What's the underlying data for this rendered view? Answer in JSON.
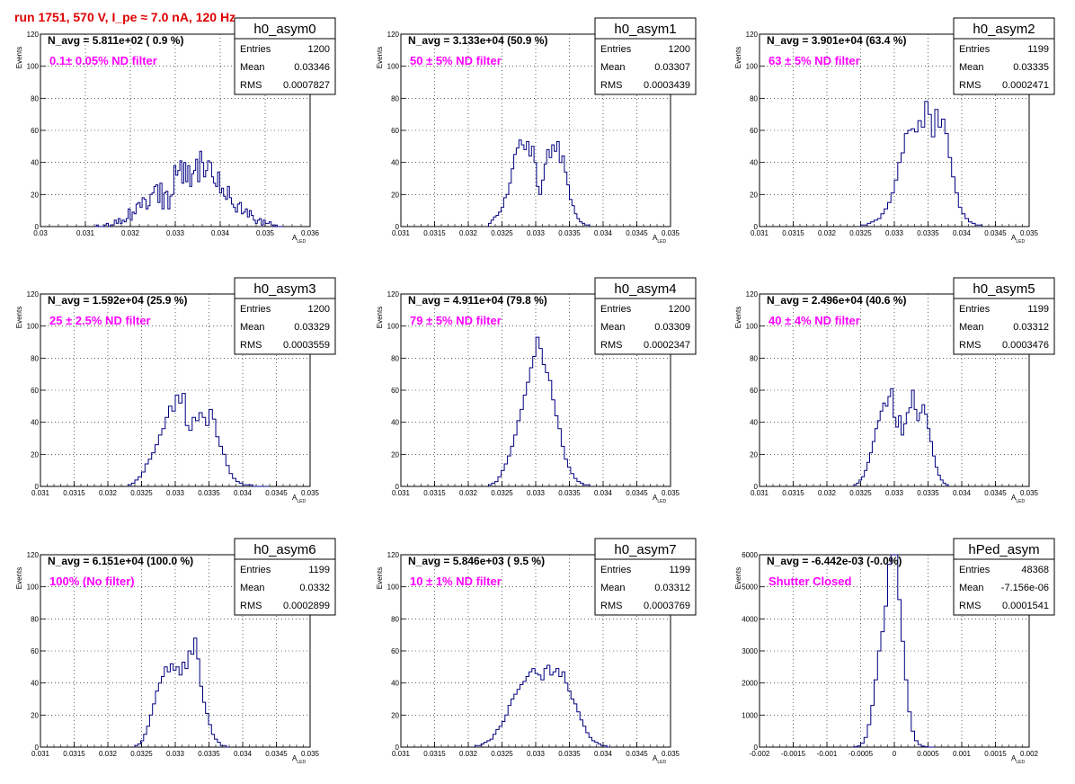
{
  "title": "run 1751,   570 V, I_pe ≈ 7.0 nA, 120 Hz",
  "colors": {
    "histogram": "#000080",
    "title": "#e00000",
    "annotation": "#ff00ff",
    "grid": "#000000"
  },
  "stats_labels": {
    "entries": "Entries",
    "mean": "Mean",
    "rms": "RMS"
  },
  "xlabel": {
    "main": "A",
    "sub": "LED"
  },
  "chart_data": [
    {
      "type": "bar",
      "name": "h0_asym0",
      "n_avg": "N_avg = 5.811e+02 ( 0.9 %)",
      "note": "0.1± 0.05% ND filter",
      "entries": "1200",
      "mean": "0.03346",
      "rms": "0.0007827",
      "ylabel": "Events",
      "xlim": [
        0.03,
        0.036
      ],
      "ylim": [
        0,
        120
      ],
      "xticks": [
        "0.03",
        "0.031",
        "0.032",
        "0.033",
        "0.034",
        "0.035",
        "0.036"
      ],
      "yticks": [
        "0",
        "20",
        "40",
        "60",
        "80",
        "100",
        "120"
      ],
      "bin_range": [
        0.0312,
        0.0354
      ],
      "values": [
        0,
        1,
        0,
        0,
        0,
        1,
        2,
        0,
        1,
        1,
        4,
        2,
        5,
        2,
        4,
        3,
        5,
        11,
        4,
        9,
        8,
        14,
        15,
        12,
        18,
        17,
        11,
        13,
        20,
        21,
        25,
        26,
        15,
        27,
        11,
        21,
        22,
        11,
        19,
        20,
        38,
        32,
        35,
        41,
        27,
        40,
        28,
        38,
        25,
        33,
        35,
        42,
        28,
        47,
        40,
        31,
        35,
        41,
        40,
        31,
        27,
        25,
        34,
        21,
        24,
        19,
        17,
        25,
        18,
        14,
        12,
        9,
        14,
        15,
        8,
        9,
        11,
        6,
        10,
        7,
        4,
        2,
        4,
        5,
        1,
        4,
        2,
        2,
        3,
        1,
        0,
        1,
        0,
        0,
        0
      ]
    },
    {
      "type": "bar",
      "name": "h0_asym1",
      "n_avg": "N_avg = 3.133e+04 (50.9 %)",
      "note": "50 ± 5% ND filter",
      "entries": "1200",
      "mean": "0.03307",
      "rms": "0.0003439",
      "ylabel": "Events",
      "xlim": [
        0.031,
        0.035
      ],
      "ylim": [
        0,
        120
      ],
      "xticks": [
        "0.031",
        "0.0315",
        "0.032",
        "0.0325",
        "0.033",
        "0.0335",
        "0.034",
        "0.0345",
        "0.035"
      ],
      "yticks": [
        "0",
        "20",
        "40",
        "60",
        "80",
        "100",
        "120"
      ],
      "bin_range": [
        0.0323,
        0.0338
      ],
      "values": [
        2,
        4,
        6,
        7,
        9,
        12,
        18,
        20,
        27,
        36,
        45,
        49,
        54,
        51,
        48,
        53,
        44,
        50,
        40,
        25,
        20,
        29,
        39,
        48,
        43,
        51,
        47,
        53,
        40,
        44,
        34,
        26,
        17,
        13,
        8,
        5,
        3,
        2,
        1,
        1
      ]
    },
    {
      "type": "bar",
      "name": "h0_asym2",
      "n_avg": "N_avg = 3.901e+04 (63.4 %)",
      "note": "63 ± 5% ND filter",
      "entries": "1199",
      "mean": "0.03335",
      "rms": "0.0002471",
      "ylabel": "Events",
      "xlim": [
        0.031,
        0.035
      ],
      "ylim": [
        0,
        120
      ],
      "xticks": [
        "0.031",
        "0.0315",
        "0.032",
        "0.0325",
        "0.033",
        "0.0335",
        "0.034",
        "0.0345",
        "0.035"
      ],
      "yticks": [
        "0",
        "20",
        "40",
        "60",
        "80",
        "100",
        "120"
      ],
      "bin_range": [
        0.0325,
        0.0343
      ],
      "values": [
        1,
        1,
        2,
        3,
        4,
        5,
        8,
        11,
        15,
        21,
        29,
        40,
        46,
        58,
        60,
        61,
        59,
        66,
        62,
        78,
        70,
        56,
        73,
        62,
        67,
        58,
        43,
        31,
        21,
        12,
        8,
        5,
        3,
        2,
        1,
        1
      ]
    },
    {
      "type": "bar",
      "name": "h0_asym3",
      "n_avg": "N_avg = 1.592e+04 (25.9 %)",
      "note": "25 ± 2.5% ND filter",
      "entries": "1200",
      "mean": "0.03329",
      "rms": "0.0003559",
      "ylabel": "Events",
      "xlim": [
        0.031,
        0.035
      ],
      "ylim": [
        0,
        120
      ],
      "xticks": [
        "0.031",
        "0.0315",
        "0.032",
        "0.0325",
        "0.033",
        "0.0335",
        "0.034",
        "0.0345",
        "0.035"
      ],
      "yticks": [
        "0",
        "20",
        "40",
        "60",
        "80",
        "100",
        "120"
      ],
      "bin_range": [
        0.0323,
        0.0344
      ],
      "values": [
        1,
        2,
        4,
        6,
        9,
        14,
        17,
        21,
        26,
        32,
        36,
        43,
        50,
        47,
        57,
        52,
        58,
        38,
        35,
        43,
        41,
        46,
        43,
        38,
        48,
        42,
        31,
        25,
        20,
        13,
        8,
        5,
        3,
        2,
        1,
        1,
        1,
        0,
        0,
        0,
        0,
        0
      ]
    },
    {
      "type": "bar",
      "name": "h0_asym4",
      "n_avg": "N_avg = 4.911e+04 (79.8 %)",
      "note": "79 ± 5% ND filter",
      "entries": "1200",
      "mean": "0.03309",
      "rms": "0.0002347",
      "ylabel": "Events",
      "xlim": [
        0.031,
        0.035
      ],
      "ylim": [
        0,
        120
      ],
      "xticks": [
        "0.031",
        "0.0315",
        "0.032",
        "0.0325",
        "0.033",
        "0.0335",
        "0.034",
        "0.0345",
        "0.035"
      ],
      "yticks": [
        "0",
        "20",
        "40",
        "60",
        "80",
        "100",
        "120"
      ],
      "bin_range": [
        0.0323,
        0.0338
      ],
      "values": [
        1,
        2,
        3,
        6,
        10,
        14,
        19,
        25,
        32,
        41,
        48,
        57,
        65,
        74,
        81,
        93,
        86,
        76,
        71,
        66,
        54,
        44,
        36,
        25,
        17,
        12,
        8,
        5,
        3,
        2,
        1,
        1
      ]
    },
    {
      "type": "bar",
      "name": "h0_asym5",
      "n_avg": "N_avg = 2.496e+04 (40.6 %)",
      "note": "40 ± 4% ND filter",
      "entries": "1199",
      "mean": "0.03312",
      "rms": "0.0003476",
      "ylabel": "Events",
      "xlim": [
        0.031,
        0.035
      ],
      "ylim": [
        0,
        120
      ],
      "xticks": [
        "0.031",
        "0.0315",
        "0.032",
        "0.0325",
        "0.033",
        "0.0335",
        "0.034",
        "0.0345",
        "0.035"
      ],
      "yticks": [
        "0",
        "20",
        "40",
        "60",
        "80",
        "100",
        "120"
      ],
      "bin_range": [
        0.0324,
        0.0338
      ],
      "values": [
        1,
        2,
        4,
        6,
        10,
        15,
        21,
        28,
        36,
        41,
        47,
        52,
        50,
        56,
        61,
        43,
        37,
        44,
        32,
        39,
        46,
        49,
        60,
        48,
        41,
        46,
        51,
        45,
        36,
        28,
        19,
        12,
        7,
        4,
        2,
        1
      ]
    },
    {
      "type": "bar",
      "name": "h0_asym6",
      "n_avg": "N_avg = 6.151e+04 (100.0 %)",
      "note": "100% (No filter)",
      "entries": "1199",
      "mean": "0.0332",
      "rms": "0.0002899",
      "ylabel": "Events",
      "xlim": [
        0.031,
        0.035
      ],
      "ylim": [
        0,
        120
      ],
      "xticks": [
        "0.031",
        "0.0315",
        "0.032",
        "0.0325",
        "0.033",
        "0.0335",
        "0.034",
        "0.0345",
        "0.035"
      ],
      "yticks": [
        "0",
        "20",
        "40",
        "60",
        "80",
        "100",
        "120"
      ],
      "bin_range": [
        0.0324,
        0.0338
      ],
      "values": [
        1,
        2,
        4,
        8,
        13,
        20,
        27,
        35,
        40,
        44,
        50,
        47,
        52,
        48,
        50,
        45,
        53,
        49,
        60,
        58,
        68,
        55,
        38,
        28,
        21,
        14,
        8,
        5,
        3,
        1,
        1,
        0
      ]
    },
    {
      "type": "bar",
      "name": "h0_asym7",
      "n_avg": "N_avg = 5.846e+03 ( 9.5 %)",
      "note": "10 ± 1% ND filter",
      "entries": "1199",
      "mean": "0.03312",
      "rms": "0.0003769",
      "ylabel": "Events",
      "xlim": [
        0.031,
        0.035
      ],
      "ylim": [
        0,
        120
      ],
      "xticks": [
        "0.031",
        "0.0315",
        "0.032",
        "0.0325",
        "0.033",
        "0.0335",
        "0.034",
        "0.0345",
        "0.035"
      ],
      "yticks": [
        "0",
        "20",
        "40",
        "60",
        "80",
        "100",
        "120"
      ],
      "bin_range": [
        0.0321,
        0.0341
      ],
      "values": [
        1,
        1,
        2,
        3,
        4,
        5,
        8,
        11,
        13,
        16,
        20,
        26,
        30,
        33,
        36,
        39,
        41,
        44,
        47,
        49,
        46,
        45,
        42,
        49,
        51,
        45,
        47,
        49,
        44,
        47,
        40,
        35,
        30,
        27,
        22,
        17,
        13,
        9,
        6,
        4,
        3,
        2,
        1,
        1,
        0
      ]
    },
    {
      "type": "bar",
      "name": "hPed_asym",
      "n_avg": "N_avg = -6.442e-03 (-0.0%)",
      "note": "Shutter Closed",
      "entries": "48368",
      "mean": "-7.156e-06",
      "rms": "0.0001541",
      "ylabel": "Events",
      "xlim": [
        -0.002,
        0.002
      ],
      "ylim": [
        0,
        6000
      ],
      "xticks": [
        "-0.002",
        "-0.0015",
        "-0.001",
        "-0.0005",
        "0",
        "0.0005",
        "0.001",
        "0.0015",
        "0.002"
      ],
      "yticks": [
        "0",
        "1000",
        "2000",
        "3000",
        "4000",
        "5000",
        "6000"
      ],
      "bin_range": [
        -0.0006,
        0.0006
      ],
      "values": [
        10,
        40,
        120,
        300,
        700,
        1300,
        2100,
        3000,
        3600,
        4400,
        5700,
        6000,
        6000,
        4600,
        3300,
        2100,
        1100,
        500,
        200,
        80,
        30,
        10,
        0,
        0
      ]
    }
  ]
}
